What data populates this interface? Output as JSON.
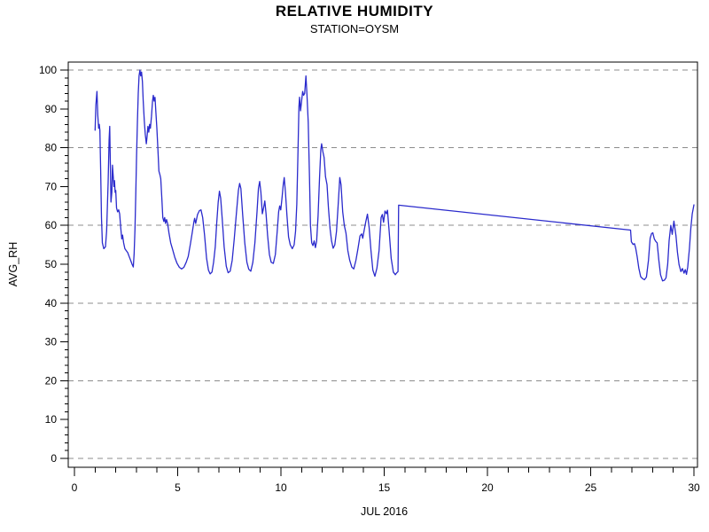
{
  "chart_data": {
    "type": "line",
    "title": "RELATIVE HUMIDITY",
    "subtitle": "STATION=OYSM",
    "xlabel": "JUL 2016",
    "ylabel": "AVG_RH",
    "xlim": [
      0,
      30
    ],
    "ylim": [
      0,
      100
    ],
    "x_major_ticks": [
      0,
      5,
      10,
      15,
      20,
      25,
      30
    ],
    "x_minor_tick_step": 1,
    "y_ticks": [
      0,
      10,
      20,
      30,
      40,
      50,
      60,
      70,
      80,
      90,
      100
    ],
    "y_minor_tick_step": 2,
    "gridlines_y": [
      0,
      20,
      40,
      60,
      80,
      100
    ],
    "grid_style": "dashed",
    "grid_color": "#8c8c8c",
    "frame_color": "#000000",
    "legend": "none",
    "line_color": "#2a2acc",
    "note": "continuous line; data gap between day 15.7 and 26.93 drawn as straight joining segment",
    "series": [
      {
        "name": "AVG_RH",
        "points": [
          [
            1.0,
            84.5
          ],
          [
            1.04,
            91
          ],
          [
            1.09,
            94.5
          ],
          [
            1.13,
            88.5
          ],
          [
            1.17,
            85
          ],
          [
            1.2,
            86
          ],
          [
            1.23,
            84.5
          ],
          [
            1.27,
            74
          ],
          [
            1.31,
            62
          ],
          [
            1.35,
            55.5
          ],
          [
            1.42,
            54
          ],
          [
            1.5,
            54.5
          ],
          [
            1.56,
            58.5
          ],
          [
            1.63,
            71
          ],
          [
            1.68,
            82
          ],
          [
            1.71,
            85.5
          ],
          [
            1.74,
            76
          ],
          [
            1.77,
            66
          ],
          [
            1.81,
            68.5
          ],
          [
            1.84,
            75.5
          ],
          [
            1.88,
            72.5
          ],
          [
            1.91,
            70
          ],
          [
            1.94,
            71.5
          ],
          [
            1.97,
            68.5
          ],
          [
            2.0,
            69
          ],
          [
            2.04,
            64.5
          ],
          [
            2.09,
            63.5
          ],
          [
            2.14,
            64
          ],
          [
            2.19,
            63
          ],
          [
            2.24,
            59.5
          ],
          [
            2.29,
            56.5
          ],
          [
            2.33,
            57.5
          ],
          [
            2.38,
            55.5
          ],
          [
            2.44,
            54
          ],
          [
            2.51,
            53.5
          ],
          [
            2.58,
            53
          ],
          [
            2.65,
            52
          ],
          [
            2.72,
            51
          ],
          [
            2.79,
            50
          ],
          [
            2.85,
            49.3
          ],
          [
            2.89,
            52.5
          ],
          [
            2.93,
            59
          ],
          [
            2.97,
            68
          ],
          [
            3.01,
            78
          ],
          [
            3.05,
            87
          ],
          [
            3.09,
            94
          ],
          [
            3.13,
            98.5
          ],
          [
            3.17,
            100
          ],
          [
            3.21,
            98.5
          ],
          [
            3.25,
            99.5
          ],
          [
            3.29,
            97
          ],
          [
            3.33,
            92
          ],
          [
            3.38,
            87
          ],
          [
            3.43,
            83.5
          ],
          [
            3.48,
            81
          ],
          [
            3.52,
            83
          ],
          [
            3.56,
            85.5
          ],
          [
            3.6,
            84
          ],
          [
            3.64,
            86
          ],
          [
            3.68,
            85
          ],
          [
            3.73,
            88
          ],
          [
            3.78,
            92
          ],
          [
            3.82,
            93.5
          ],
          [
            3.86,
            92
          ],
          [
            3.9,
            93
          ],
          [
            3.94,
            89.5
          ],
          [
            3.99,
            85
          ],
          [
            4.04,
            80
          ],
          [
            4.09,
            74
          ],
          [
            4.14,
            73
          ],
          [
            4.18,
            72
          ],
          [
            4.23,
            67
          ],
          [
            4.28,
            62
          ],
          [
            4.33,
            61
          ],
          [
            4.37,
            62
          ],
          [
            4.41,
            60.5
          ],
          [
            4.46,
            61.5
          ],
          [
            4.51,
            60.5
          ],
          [
            4.58,
            58
          ],
          [
            4.66,
            55.5
          ],
          [
            4.76,
            53.7
          ],
          [
            4.86,
            51.8
          ],
          [
            4.97,
            50.2
          ],
          [
            5.08,
            49.2
          ],
          [
            5.19,
            48.8
          ],
          [
            5.3,
            49.2
          ],
          [
            5.41,
            50.5
          ],
          [
            5.51,
            52
          ],
          [
            5.62,
            55.3
          ],
          [
            5.7,
            58
          ],
          [
            5.78,
            60.8
          ],
          [
            5.82,
            61.8
          ],
          [
            5.87,
            60.5
          ],
          [
            5.96,
            62.8
          ],
          [
            6.05,
            63.8
          ],
          [
            6.13,
            64
          ],
          [
            6.21,
            62
          ],
          [
            6.3,
            57.5
          ],
          [
            6.4,
            51.5
          ],
          [
            6.49,
            48.5
          ],
          [
            6.57,
            47.5
          ],
          [
            6.66,
            48
          ],
          [
            6.74,
            50.5
          ],
          [
            6.82,
            54.5
          ],
          [
            6.89,
            60.5
          ],
          [
            6.96,
            66
          ],
          [
            7.02,
            68.8
          ],
          [
            7.08,
            67
          ],
          [
            7.16,
            61.5
          ],
          [
            7.25,
            54.5
          ],
          [
            7.35,
            49.5
          ],
          [
            7.44,
            47.8
          ],
          [
            7.54,
            48.2
          ],
          [
            7.64,
            51
          ],
          [
            7.74,
            56.5
          ],
          [
            7.84,
            63
          ],
          [
            7.94,
            69
          ],
          [
            8.0,
            70.8
          ],
          [
            8.06,
            69.5
          ],
          [
            8.15,
            62.5
          ],
          [
            8.25,
            55.5
          ],
          [
            8.35,
            50.5
          ],
          [
            8.44,
            48.7
          ],
          [
            8.54,
            48.2
          ],
          [
            8.64,
            50.5
          ],
          [
            8.74,
            55.5
          ],
          [
            8.84,
            63.5
          ],
          [
            8.91,
            69.5
          ],
          [
            8.97,
            71.3
          ],
          [
            9.03,
            68.5
          ],
          [
            9.1,
            63
          ],
          [
            9.16,
            64.5
          ],
          [
            9.22,
            66.3
          ],
          [
            9.28,
            63
          ],
          [
            9.35,
            57.5
          ],
          [
            9.44,
            52.5
          ],
          [
            9.53,
            50.5
          ],
          [
            9.63,
            50.2
          ],
          [
            9.73,
            52.5
          ],
          [
            9.82,
            58.5
          ],
          [
            9.89,
            63.5
          ],
          [
            9.94,
            65
          ],
          [
            9.99,
            64
          ],
          [
            10.05,
            67
          ],
          [
            10.11,
            70.5
          ],
          [
            10.16,
            72.3
          ],
          [
            10.22,
            68.5
          ],
          [
            10.29,
            62.5
          ],
          [
            10.37,
            57
          ],
          [
            10.45,
            55
          ],
          [
            10.55,
            54
          ],
          [
            10.64,
            55
          ],
          [
            10.71,
            58.5
          ],
          [
            10.77,
            65.5
          ],
          [
            10.82,
            77.5
          ],
          [
            10.87,
            90.5
          ],
          [
            10.9,
            93
          ],
          [
            10.95,
            89.5
          ],
          [
            11.0,
            92
          ],
          [
            11.05,
            94.5
          ],
          [
            11.1,
            93.5
          ],
          [
            11.15,
            94
          ],
          [
            11.21,
            98.5
          ],
          [
            11.26,
            93.5
          ],
          [
            11.32,
            86.5
          ],
          [
            11.38,
            72.5
          ],
          [
            11.43,
            60
          ],
          [
            11.49,
            55.5
          ],
          [
            11.55,
            54.8
          ],
          [
            11.61,
            56
          ],
          [
            11.67,
            54.3
          ],
          [
            11.73,
            56
          ],
          [
            11.8,
            62.5
          ],
          [
            11.87,
            72.5
          ],
          [
            11.93,
            79.5
          ],
          [
            11.97,
            81
          ],
          [
            12.03,
            79
          ],
          [
            12.09,
            77.5
          ],
          [
            12.16,
            72.5
          ],
          [
            12.23,
            70.5
          ],
          [
            12.3,
            64.5
          ],
          [
            12.38,
            59
          ],
          [
            12.45,
            56
          ],
          [
            12.53,
            54.1
          ],
          [
            12.61,
            55
          ],
          [
            12.69,
            58.5
          ],
          [
            12.77,
            65
          ],
          [
            12.85,
            72.3
          ],
          [
            12.91,
            70.5
          ],
          [
            12.99,
            63.5
          ],
          [
            13.07,
            60
          ],
          [
            13.15,
            58
          ],
          [
            13.24,
            53.5
          ],
          [
            13.33,
            51
          ],
          [
            13.43,
            49.3
          ],
          [
            13.53,
            48.8
          ],
          [
            13.63,
            51
          ],
          [
            13.73,
            54
          ],
          [
            13.83,
            57.3
          ],
          [
            13.91,
            57.8
          ],
          [
            13.96,
            56.7
          ],
          [
            14.04,
            59
          ],
          [
            14.11,
            61
          ],
          [
            14.19,
            62.9
          ],
          [
            14.27,
            59.5
          ],
          [
            14.36,
            53.5
          ],
          [
            14.45,
            48.5
          ],
          [
            14.55,
            46.9
          ],
          [
            14.65,
            49
          ],
          [
            14.75,
            53.5
          ],
          [
            14.85,
            62
          ],
          [
            14.91,
            62.8
          ],
          [
            14.97,
            60.8
          ],
          [
            15.04,
            63.7
          ],
          [
            15.11,
            63
          ],
          [
            15.16,
            63.9
          ],
          [
            15.24,
            58.5
          ],
          [
            15.34,
            51.5
          ],
          [
            15.44,
            48
          ],
          [
            15.54,
            47.3
          ],
          [
            15.61,
            47.8
          ],
          [
            15.67,
            48.1
          ],
          [
            15.7,
            65.2
          ],
          [
            26.93,
            58.8
          ],
          [
            26.97,
            55.8
          ],
          [
            27.05,
            55.1
          ],
          [
            27.12,
            55.3
          ],
          [
            27.18,
            54.1
          ],
          [
            27.25,
            52
          ],
          [
            27.33,
            49
          ],
          [
            27.42,
            46.8
          ],
          [
            27.51,
            46.3
          ],
          [
            27.6,
            46
          ],
          [
            27.7,
            46.7
          ],
          [
            27.8,
            51
          ],
          [
            27.88,
            56.7
          ],
          [
            27.95,
            57.9
          ],
          [
            28.01,
            58.1
          ],
          [
            28.08,
            56.5
          ],
          [
            28.15,
            55.9
          ],
          [
            28.22,
            55.5
          ],
          [
            28.3,
            51
          ],
          [
            28.38,
            47.3
          ],
          [
            28.48,
            45.7
          ],
          [
            28.57,
            45.9
          ],
          [
            28.65,
            46.5
          ],
          [
            28.73,
            50
          ],
          [
            28.8,
            56.1
          ],
          [
            28.88,
            60
          ],
          [
            28.95,
            57.7
          ],
          [
            29.03,
            61.1
          ],
          [
            29.13,
            57.4
          ],
          [
            29.2,
            53.1
          ],
          [
            29.28,
            49.9
          ],
          [
            29.37,
            48.1
          ],
          [
            29.44,
            48.9
          ],
          [
            29.52,
            47.7
          ],
          [
            29.58,
            48.6
          ],
          [
            29.64,
            47.4
          ],
          [
            29.7,
            49.3
          ],
          [
            29.78,
            54
          ],
          [
            29.85,
            59.3
          ],
          [
            29.92,
            63
          ],
          [
            30.0,
            65.3
          ]
        ]
      }
    ]
  }
}
